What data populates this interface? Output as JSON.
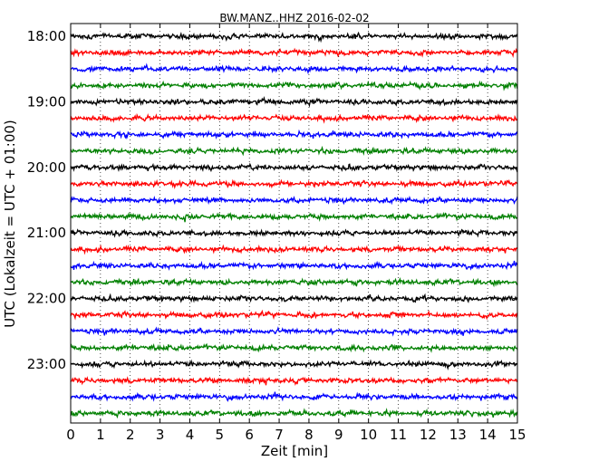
{
  "chart_data": {
    "type": "line",
    "chart_kind": "seismogram dayplot",
    "title": "BW.MANZ..HHZ 2016-02-02",
    "xlabel": "Zeit  [min]",
    "ylabel": "UTC (Lokalzeit = UTC + 01:00)",
    "xlim": [
      0,
      15
    ],
    "x_ticks": [
      "0",
      "1",
      "2",
      "3",
      "4",
      "5",
      "6",
      "7",
      "8",
      "9",
      "10",
      "11",
      "12",
      "13",
      "14",
      "15"
    ],
    "y_tick_labels": [
      "18:00",
      "19:00",
      "20:00",
      "21:00",
      "22:00",
      "23:00"
    ],
    "trace_interval_min": 15,
    "trace_count": 24,
    "trace_colors": [
      "#000000",
      "#ff0000",
      "#0000ff",
      "#008000"
    ],
    "x_grid": true,
    "x_grid_style": "dotted",
    "trace_amplitude_rel": 0.3
  }
}
